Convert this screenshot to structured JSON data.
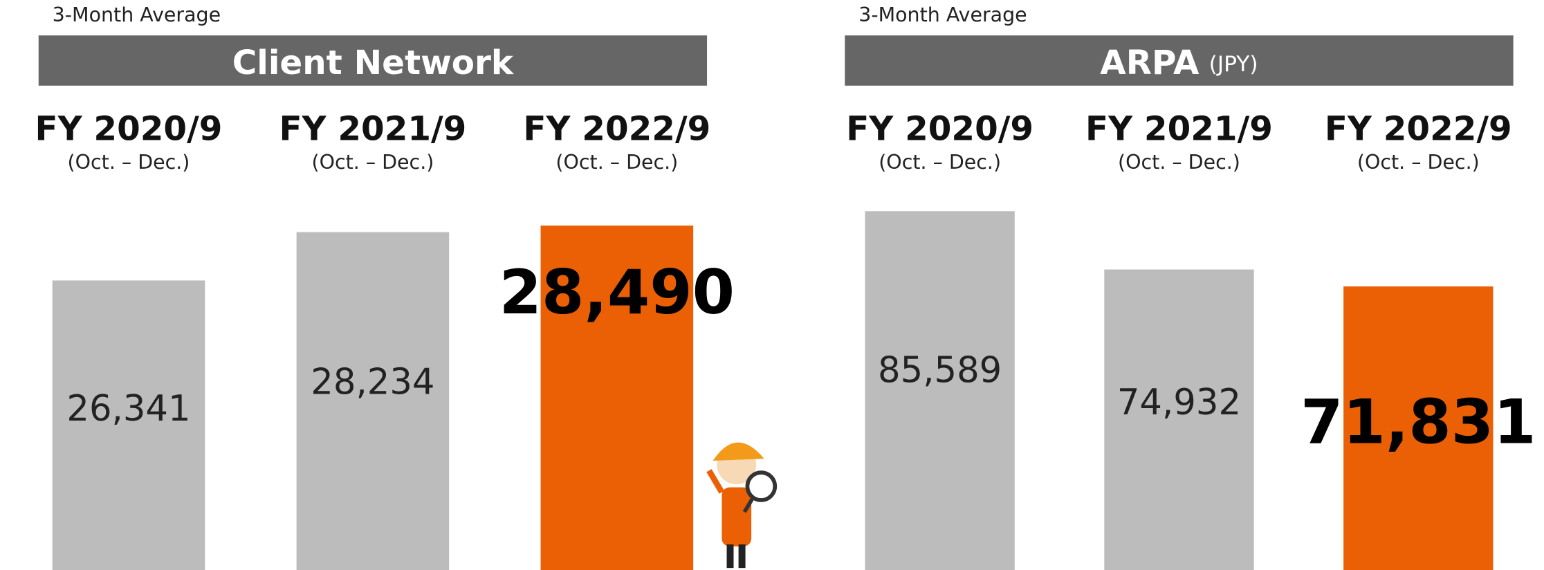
{
  "chart_data": [
    {
      "type": "bar",
      "note": "3-Month Average",
      "title": "Client Network",
      "categories": [
        "FY 2020/9",
        "FY 2021/9",
        "FY 2022/9"
      ],
      "category_sublabels": [
        "(Oct. – Dec.)",
        "(Oct. – Dec.)",
        "(Oct. – Dec.)"
      ],
      "values": [
        26341,
        28234,
        28490
      ],
      "value_labels": [
        "26,341",
        "28,234",
        "28,490"
      ],
      "colors": [
        "#bcbcbc",
        "#bcbcbc",
        "#eb6005"
      ],
      "highlight_index": 2,
      "ylim": [
        15000,
        30000
      ]
    },
    {
      "type": "bar",
      "note": "3-Month Average",
      "title": "ARPA",
      "title_unit": "(JPY)",
      "categories": [
        "FY 2020/9",
        "FY 2021/9",
        "FY 2022/9"
      ],
      "category_sublabels": [
        "(Oct. – Dec.)",
        "(Oct. – Dec.)",
        "(Oct. – Dec.)"
      ],
      "values": [
        85589,
        74932,
        71831
      ],
      "value_labels": [
        "85,589",
        "74,932",
        "71,831"
      ],
      "colors": [
        "#bcbcbc",
        "#bcbcbc",
        "#eb6005"
      ],
      "highlight_index": 2,
      "ylim": [
        20000,
        90000
      ]
    }
  ]
}
